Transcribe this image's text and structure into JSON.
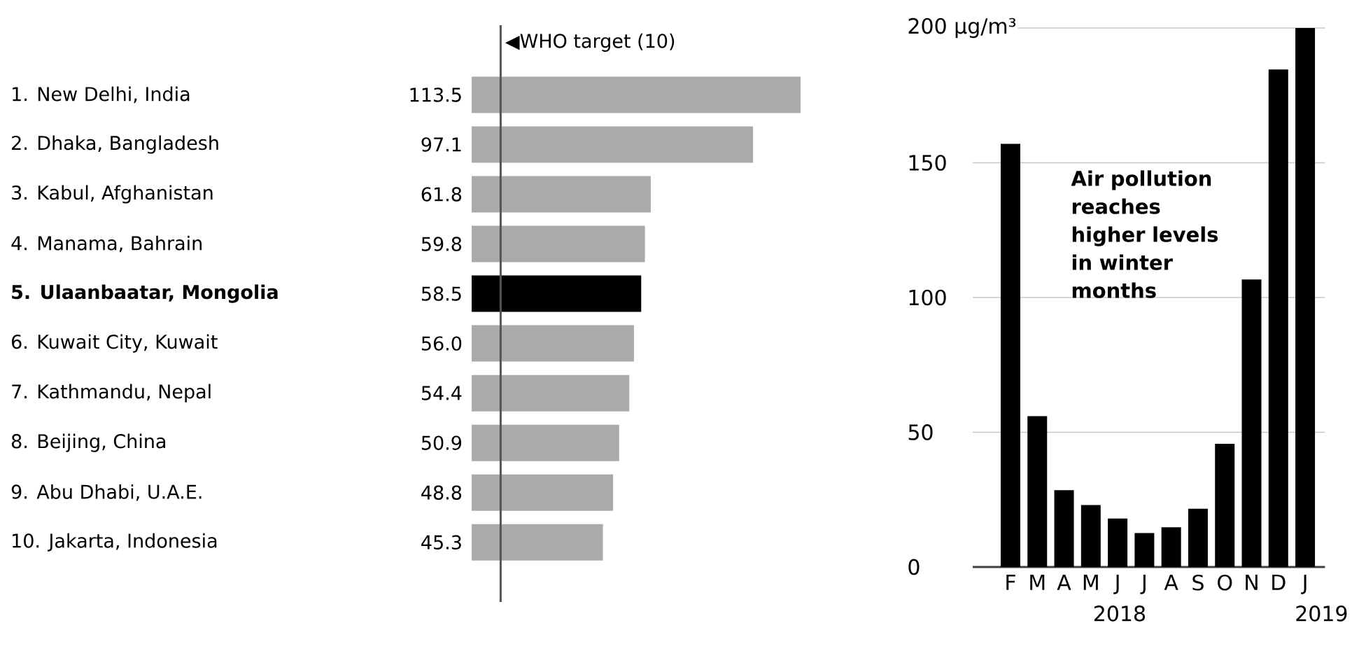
{
  "chart_data": [
    {
      "type": "bar",
      "orientation": "horizontal",
      "categories": [
        "1. New Delhi, India",
        "2. Dhaka, Bangladesh",
        "3. Kabul, Afghanistan",
        "4. Manama, Bahrain",
        "**5. Ulaanbaatar, Mongolia**",
        "6. Kuwait City, Kuwait",
        "7. Kathmandu, Nepal",
        "8. Beijing, China",
        "9. Abu Dhabi, U.A.E.",
        "10. Jakarta, Indonesia"
      ],
      "values": [
        113.5,
        97.1,
        61.8,
        59.8,
        58.5,
        56.0,
        54.4,
        50.9,
        48.8,
        45.3
      ],
      "colors": [
        "#aaaaaa",
        "#aaaaaa",
        "#aaaaaa",
        "#aaaaaa",
        "#000000",
        "#aaaaaa",
        "#aaaaaa",
        "#aaaaaa",
        "#aaaaaa",
        "#aaaaaa"
      ],
      "value_labels": [
        "113.5",
        "97.1",
        "61.8",
        "59.8",
        "58.5",
        "56.0",
        "54.4",
        "50.9",
        "48.8",
        "45.3"
      ],
      "ref_lines": [
        {
          "axis": "x",
          "value": 10,
          "label": "◀WHO target (10)",
          "color": "#555555"
        }
      ]
    },
    {
      "type": "bar",
      "categories": [
        "F",
        "M",
        "A",
        "M",
        "J",
        "J",
        "A",
        "S",
        "O",
        "N",
        "D",
        "J"
      ],
      "values": [
        157,
        56,
        28.5,
        23,
        18,
        12.6,
        14.7,
        21.6,
        45.7,
        106.7,
        184.6,
        200
      ],
      "color": "#000000",
      "ylim": [
        0,
        200
      ],
      "yticks": [
        0,
        50,
        100,
        150,
        {
          "value": 200,
          "label": "200 μg/m³"
        }
      ],
      "grid": "y",
      "annotations": [
        "Air pollution reaches higher levels in winter months",
        "2018",
        "2019"
      ]
    }
  ]
}
